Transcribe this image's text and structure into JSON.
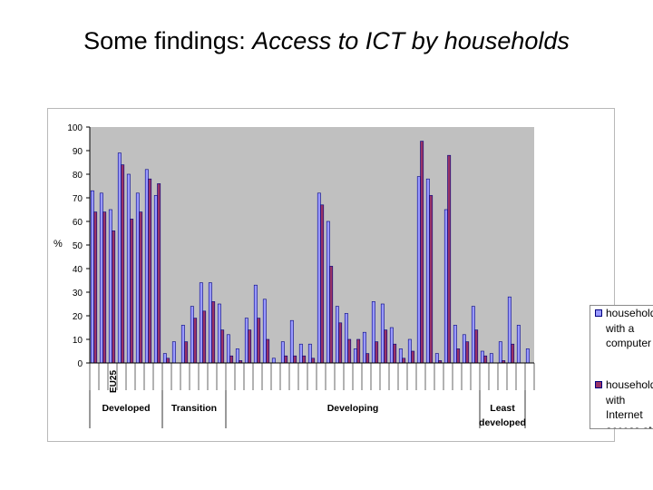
{
  "slide": {
    "title_prefix": "Some findings: ",
    "title_italic": "Access to ICT by households"
  },
  "colors": {
    "plot_bg": "#c0c0c0",
    "computer": "#9999ff",
    "internet": "#993366",
    "bar_outline": "#000080",
    "gridline": "#000000"
  },
  "chart_data": {
    "type": "bar",
    "ylabel": "%",
    "ylim": [
      0,
      100
    ],
    "yticks": [
      0,
      10,
      20,
      30,
      40,
      50,
      60,
      70,
      80,
      90,
      100
    ],
    "grid": false,
    "legend_position": "right",
    "highlighted_category_label": "EU25",
    "highlighted_category_index": 2,
    "groups": [
      {
        "label": "Developed",
        "start": 0,
        "end": 7
      },
      {
        "label": "Transition",
        "start": 8,
        "end": 14
      },
      {
        "label": "Developing",
        "start": 15,
        "end": 42
      },
      {
        "label": "Least\ndeveloped",
        "start": 43,
        "end": 47
      }
    ],
    "series": [
      {
        "name": "households with a computer",
        "values": [
          73,
          72,
          65,
          89,
          80,
          72,
          82,
          71,
          4,
          9,
          16,
          24,
          34,
          34,
          25,
          12,
          6,
          19,
          33,
          27,
          2,
          9,
          18,
          8,
          8,
          72,
          60,
          24,
          21,
          6,
          13,
          26,
          25,
          15,
          6,
          10,
          79,
          78,
          4,
          65,
          16,
          12,
          24,
          5,
          4,
          9,
          28,
          16,
          6
        ]
      },
      {
        "name": "households with Internet access at home",
        "values": [
          64,
          64,
          56,
          84,
          61,
          64,
          78,
          76,
          2,
          0,
          9,
          19,
          22,
          26,
          14,
          3,
          1,
          14,
          19,
          10,
          0,
          3,
          3,
          3,
          2,
          67,
          41,
          17,
          10,
          10,
          4,
          9,
          14,
          8,
          2,
          5,
          94,
          71,
          1,
          88,
          6,
          9,
          14,
          3,
          0,
          1,
          8,
          0,
          0
        ]
      }
    ]
  }
}
